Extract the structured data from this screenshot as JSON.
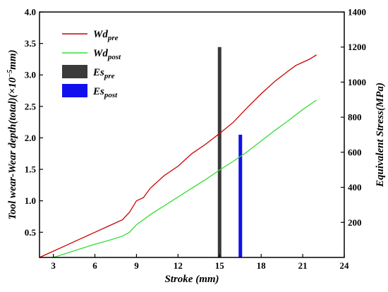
{
  "chart_data": {
    "type": "line",
    "xlabel": "Stroke (mm)",
    "ylabel_left": "Tool wear-Wear depth(total)(×10",
    "ylabel_left_exp": "−5",
    "ylabel_left_unit": "mm)",
    "ylabel_right": "Equivalent Stress(MPa)",
    "xlim": [
      2,
      24
    ],
    "ylim_left": [
      0.1,
      4.0
    ],
    "ylim_right": [
      0,
      1400
    ],
    "x_ticks": [
      3,
      6,
      9,
      12,
      15,
      18,
      21,
      24
    ],
    "y_left_ticks": [
      0.5,
      1.0,
      1.5,
      2.0,
      2.5,
      3.0,
      3.5,
      4.0
    ],
    "y_right_ticks": [
      200,
      400,
      600,
      800,
      1000,
      1200,
      1400
    ],
    "x_tick_labels": [
      "3",
      "6",
      "9",
      "12",
      "15",
      "18",
      "21",
      "24"
    ],
    "y_left_tick_labels": [
      "0.5",
      "1.0",
      "1.5",
      "2.0",
      "2.5",
      "3.0",
      "3.5",
      "4.0"
    ],
    "y_right_tick_labels": [
      "200",
      "400",
      "600",
      "800",
      "1000",
      "1200",
      "1400"
    ],
    "legend_position": "top-left",
    "series": [
      {
        "name": "Wd",
        "sub": "pre",
        "kind": "line",
        "axis": "left",
        "color": "#cc0000",
        "x": [
          2,
          3,
          4,
          5,
          6,
          7,
          8,
          8.5,
          9,
          9.5,
          10,
          11,
          12,
          13,
          14,
          15,
          16,
          17,
          18,
          19,
          20,
          20.5,
          21,
          21.5,
          22
        ],
        "y": [
          0.1,
          0.2,
          0.3,
          0.4,
          0.5,
          0.6,
          0.7,
          0.82,
          1.0,
          1.05,
          1.2,
          1.4,
          1.55,
          1.75,
          1.9,
          2.07,
          2.25,
          2.48,
          2.7,
          2.9,
          3.07,
          3.15,
          3.2,
          3.25,
          3.32
        ]
      },
      {
        "name": "Wd",
        "sub": "post",
        "kind": "line",
        "axis": "left",
        "color": "#33dd33",
        "x": [
          3,
          4,
          5,
          6,
          7,
          8,
          8.5,
          9,
          10,
          11,
          12,
          13,
          14,
          15,
          16,
          17,
          18,
          19,
          20,
          21,
          22
        ],
        "y": [
          0.1,
          0.17,
          0.24,
          0.31,
          0.37,
          0.44,
          0.5,
          0.62,
          0.78,
          0.92,
          1.06,
          1.2,
          1.34,
          1.49,
          1.63,
          1.78,
          1.95,
          2.12,
          2.28,
          2.45,
          2.6
        ]
      },
      {
        "name": "Es",
        "sub": "pre",
        "kind": "bar",
        "axis": "right",
        "color": "#3a3a3a",
        "x": [
          15
        ],
        "y": [
          1200
        ]
      },
      {
        "name": "Es",
        "sub": "post",
        "kind": "bar",
        "axis": "right",
        "color": "#1010ee",
        "x": [
          16.5
        ],
        "y": [
          700
        ]
      }
    ]
  }
}
